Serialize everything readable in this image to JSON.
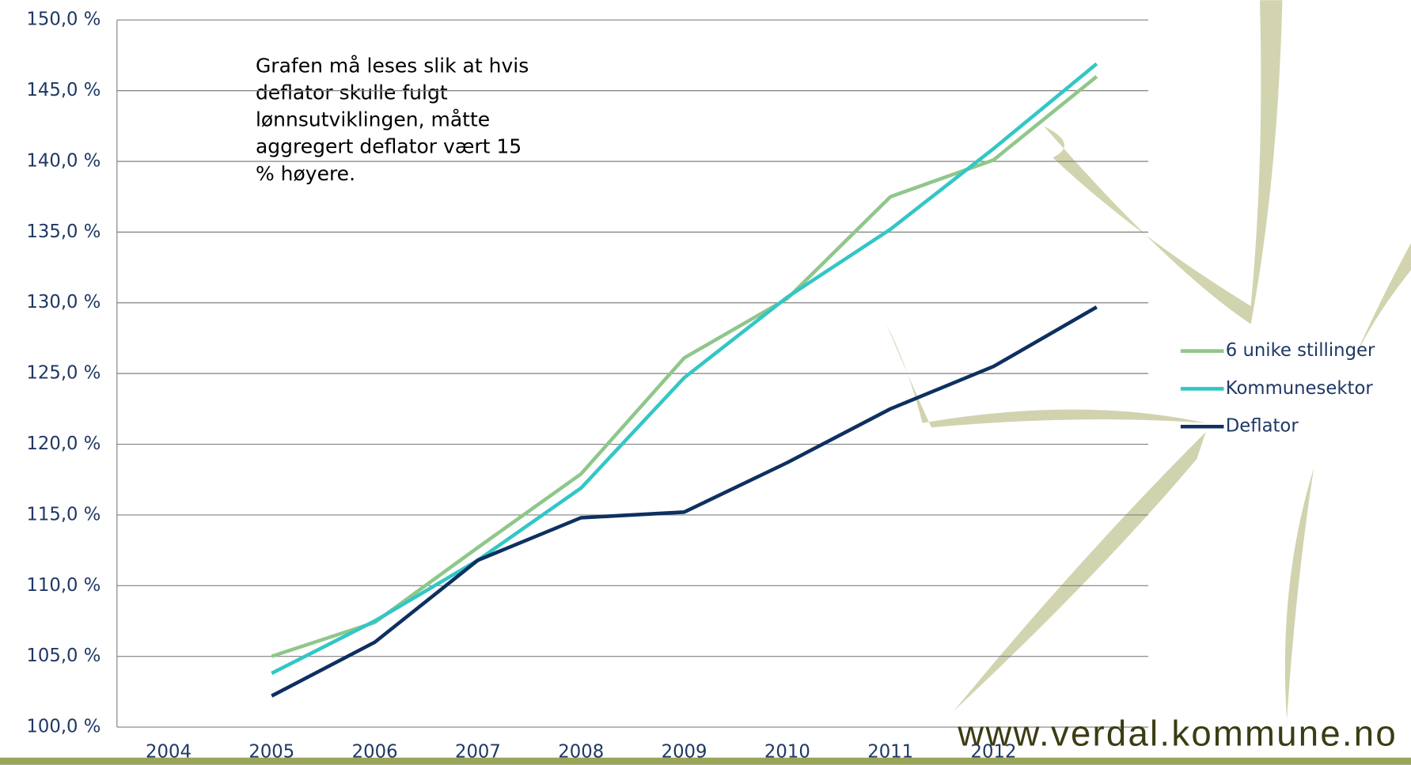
{
  "chart_data": {
    "type": "line",
    "categories": [
      null,
      "2005",
      "2006",
      "2007",
      "2008",
      "2009",
      "2010",
      "2011",
      "2012",
      null
    ],
    "x_first_label": "2004",
    "series": [
      {
        "name": "6 unike stillinger",
        "color": "#8fc78a",
        "values": [
          null,
          105.0,
          107.4,
          112.7,
          117.9,
          126.1,
          130.3,
          137.5,
          140.1,
          146.0
        ]
      },
      {
        "name": "Kommunesektor",
        "color": "#33c6c6",
        "values": [
          null,
          103.8,
          107.5,
          111.8,
          116.9,
          124.7,
          130.4,
          135.2,
          140.9,
          146.9
        ]
      },
      {
        "name": "Deflator",
        "color": "#0d3060",
        "values": [
          null,
          102.2,
          106.0,
          111.8,
          114.8,
          115.2,
          118.7,
          122.5,
          125.5,
          129.7
        ]
      }
    ],
    "ylim": [
      100,
      150
    ],
    "yticks": [
      {
        "value": 100,
        "label": "100,0 %"
      },
      {
        "value": 105,
        "label": "105,0 %"
      },
      {
        "value": 110,
        "label": "110,0 %"
      },
      {
        "value": 115,
        "label": "115,0 %"
      },
      {
        "value": 120,
        "label": "120,0 %"
      },
      {
        "value": 125,
        "label": "125,0 %"
      },
      {
        "value": 130,
        "label": "130,0 %"
      },
      {
        "value": 135,
        "label": "135,0 %"
      },
      {
        "value": 140,
        "label": "140,0 %"
      },
      {
        "value": 145,
        "label": "145,0 %"
      },
      {
        "value": 150,
        "label": "150,0 %"
      }
    ],
    "grid": true,
    "legend": "right",
    "annotation": [
      "Grafen må leses slik at hvis",
      "deflator skulle fulgt",
      "lønnsutviklingen, måtte",
      "aggregert deflator vært 15",
      "% høyere."
    ],
    "footer": "www.verdal.kommune.no"
  }
}
